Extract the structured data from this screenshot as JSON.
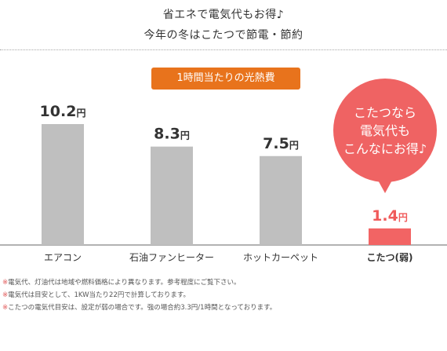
{
  "header": {
    "line1": "省エネで電気代もお得♪",
    "line2": "今年の冬はこたつで節電・節約"
  },
  "label_box": "1時間当たりの光熱費",
  "callout": {
    "lines": [
      "こたつなら",
      "電気代も",
      "こんなにお得♪"
    ],
    "color": "#ef6363"
  },
  "colors": {
    "bar_default": "#bfbfbf",
    "bar_highlight": "#f26464",
    "accent_orange": "#e8731c",
    "value_highlight": "#f05a5a"
  },
  "chart_data": {
    "type": "bar",
    "title": "1時間当たりの光熱費",
    "categories": [
      "エアコン",
      "石油ファンヒーター",
      "ホットカーペット",
      "こたつ(弱)"
    ],
    "values": [
      10.2,
      8.3,
      7.5,
      1.4
    ],
    "value_labels": [
      "10.2",
      "8.3",
      "7.5",
      "1.4"
    ],
    "unit": "円",
    "highlight_index": 3,
    "ylim": [
      0,
      10.2
    ],
    "grid": false,
    "legend": "none"
  },
  "footnotes": {
    "mark": "※",
    "lines": [
      "電気代、灯油代は地域や燃料価格により異なります。参考程度にご覧下さい。",
      "電気代は目安として、1KW当たり22円で計算しております。",
      "こたつの電気代目安は、設定が弱の場合です。強の場合約3.3円/1時間となっております。"
    ]
  }
}
